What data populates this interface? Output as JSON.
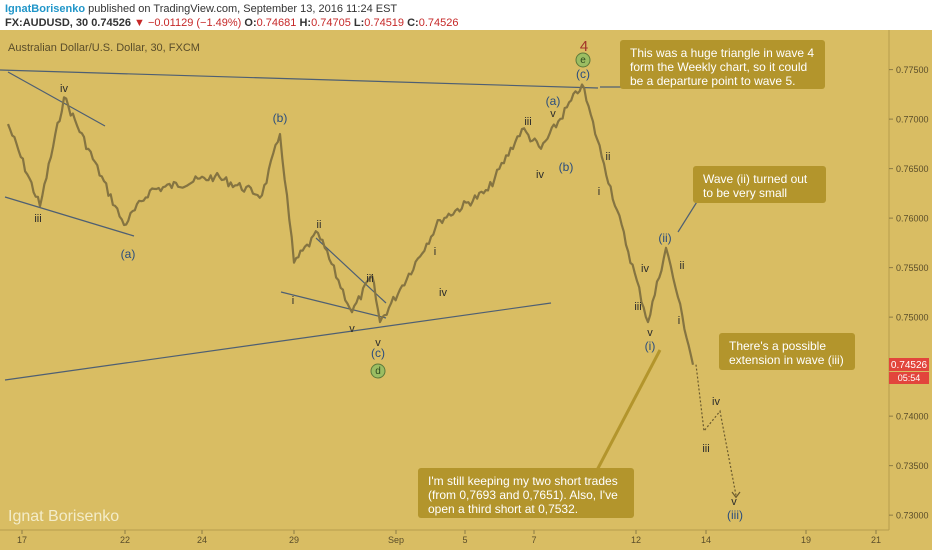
{
  "header": {
    "author": "IgnatBorisenko",
    "published": "published on TradingView.com, September 13, 2016 11:24 EST",
    "symbol": "FX:AUDUSD, 30",
    "last": "0.74526",
    "change": "▼ −0.01129 (−1.49%)",
    "o_label": "O:",
    "o": "0.74681",
    "h_label": "H:",
    "h": "0.74705",
    "l_label": "L:",
    "l": "0.74519",
    "c_label": "C:",
    "c": "0.74526"
  },
  "chart_title": "Australian Dollar/U.S. Dollar, 30, FXCM",
  "watermark": "Ignat Borisenko",
  "colors": {
    "background": "#d9bd63",
    "candle": "#857441",
    "line": "#4e5f73",
    "callout": "#b3952c",
    "price_tag": "#e2453c",
    "wave_red": "#a2342a",
    "wave_blue": "#2a4d7e",
    "circle_green": "#9bbd62"
  },
  "annotations": {
    "triangle": "This was a huge triangle in wave 4 form the Weekly chart, so it could be a departure point to wave 5.",
    "small_wave": "Wave (ii) turned out to be very small",
    "extension": "There's a possible extension in wave (iii)",
    "trades": "I'm still keeping my two short trades (from 0,7693 and 0,7651). Also, I've open a third short at 0,7532."
  },
  "price_tag": {
    "price": "0.74526",
    "countdown": "05:54"
  },
  "chart_data": {
    "type": "line",
    "instrument": "Australian Dollar/U.S. Dollar, 30, FXCM",
    "ylim": [
      0.7285,
      0.779
    ],
    "y_ticks": [
      "0.77500",
      "0.77000",
      "0.76500",
      "0.76000",
      "0.75500",
      "0.75000",
      "0.74500",
      "0.74000",
      "0.73500",
      "0.73000"
    ],
    "x_ticks": [
      "17",
      "22",
      "24",
      "29",
      "Sep",
      "5",
      "7",
      "12",
      "14",
      "19",
      "21"
    ],
    "series": [
      {
        "x": [
          "Aug 17",
          "Aug 18",
          "Aug 19",
          "Aug 22",
          "Aug 23",
          "Aug 25",
          "Aug 26",
          "Aug 26",
          "Aug 29",
          "Aug 30",
          "Aug 31",
          "Sep 1",
          "Sep 1",
          "Sep 2",
          "Sep 5",
          "Sep 6",
          "Sep 7",
          "Sep 8",
          "Sep 8",
          "Sep 9",
          "Sep 12",
          "Sep 12",
          "Sep 13",
          "Sep 13"
        ],
        "y": [
          0.7695,
          0.7612,
          0.7722,
          0.7593,
          0.7628,
          0.7642,
          0.7623,
          0.7685,
          0.7555,
          0.7585,
          0.7505,
          0.7542,
          0.7495,
          0.7528,
          0.7598,
          0.7628,
          0.769,
          0.767,
          0.7735,
          0.7655,
          0.7495,
          0.757,
          0.752,
          0.7452
        ]
      }
    ],
    "projection": {
      "x": [
        "Sep 13",
        "Sep 13",
        "Sep 14",
        "Sep 14"
      ],
      "y": [
        0.7452,
        0.7385,
        0.7405,
        0.732
      ]
    },
    "wave_labels": [
      "4",
      "(c)",
      "e",
      "(a)",
      "v",
      "iii",
      "iv",
      "(b)",
      "ii",
      "i",
      "i",
      "iv",
      "iii",
      "v",
      "(a)",
      "(b)",
      "ii",
      "i",
      "iv",
      "iii",
      "v",
      "(c)",
      "d",
      "i",
      "ii",
      "(ii)",
      "ii",
      "iv",
      "iii",
      "v",
      "(i)",
      "i",
      "iv",
      "iii",
      "v",
      "(iii)"
    ]
  }
}
